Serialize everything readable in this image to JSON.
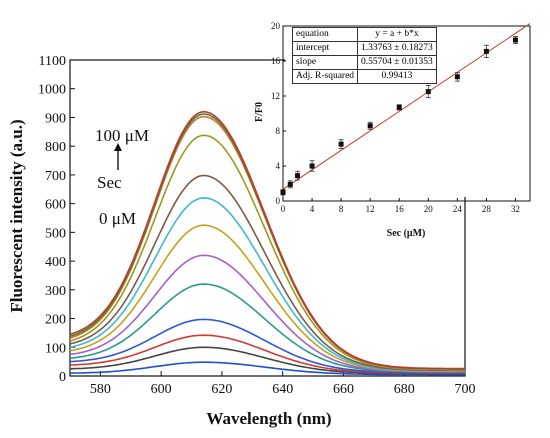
{
  "chart_data": [
    {
      "type": "line",
      "title": "",
      "xlabel": "Wavelength (nm)",
      "ylabel": "Fluorescent intensity (a.u.)",
      "xlim": [
        570,
        700
      ],
      "ylim": [
        0,
        1100
      ],
      "xticks": [
        580,
        600,
        620,
        640,
        660,
        680,
        700
      ],
      "yticks": [
        0,
        100,
        200,
        300,
        400,
        500,
        600,
        700,
        800,
        900,
        1000,
        1100
      ],
      "grid": false,
      "annotations": [
        "100 μM",
        "Sec",
        "0 μM"
      ],
      "series_peak_wavelength": 614,
      "series": [
        {
          "color": "#1f4fd8",
          "peak": 48,
          "start": 10,
          "end": 5
        },
        {
          "color": "#444444",
          "peak": 100,
          "start": 25,
          "end": 8
        },
        {
          "color": "#d23a2f",
          "peak": 142,
          "start": 38,
          "end": 10
        },
        {
          "color": "#2b56d6",
          "peak": 197,
          "start": 50,
          "end": 12
        },
        {
          "color": "#2a9a8a",
          "peak": 320,
          "start": 62,
          "end": 14
        },
        {
          "color": "#a35fd1",
          "peak": 420,
          "start": 75,
          "end": 15
        },
        {
          "color": "#c2a21a",
          "peak": 525,
          "start": 88,
          "end": 17
        },
        {
          "color": "#3fb6d6",
          "peak": 620,
          "start": 100,
          "end": 18
        },
        {
          "color": "#7a5a4a",
          "peak": 698,
          "start": 112,
          "end": 20
        },
        {
          "color": "#9a9a20",
          "peak": 838,
          "start": 122,
          "end": 22
        },
        {
          "color": "#e06a3a",
          "peak": 903,
          "start": 132,
          "end": 24
        },
        {
          "color": "#3a8a2a",
          "peak": 912,
          "start": 138,
          "end": 25
        },
        {
          "color": "#c0392b",
          "peak": 920,
          "start": 145,
          "end": 26
        }
      ]
    },
    {
      "type": "scatter",
      "title": "",
      "xlabel": "Sec (μM)",
      "ylabel": "F/F0",
      "xlim": [
        0,
        34
      ],
      "ylim": [
        0,
        20
      ],
      "xticks": [
        0,
        4,
        8,
        12,
        16,
        20,
        24,
        28,
        32
      ],
      "yticks": [
        0,
        4,
        8,
        12,
        16,
        20
      ],
      "x": [
        0,
        1,
        2,
        4,
        8,
        12,
        16,
        20,
        24,
        28,
        32
      ],
      "y": [
        1.0,
        1.9,
        2.9,
        4.0,
        6.5,
        8.6,
        10.7,
        12.5,
        14.2,
        17.1,
        18.4
      ],
      "err": [
        0.3,
        0.4,
        0.5,
        0.6,
        0.5,
        0.4,
        0.3,
        0.7,
        0.5,
        0.7,
        0.4
      ],
      "fit": {
        "intercept": 1.33763,
        "slope": 0.55704,
        "color": "#c0392b"
      },
      "table": [
        [
          "equation",
          "y = a + b*x"
        ],
        [
          "intercept",
          "1.33763 ± 0.18273"
        ],
        [
          "slope",
          "0.55704 ± 0.01353"
        ],
        [
          "Adj. R-squared",
          "0.99413"
        ]
      ]
    }
  ]
}
